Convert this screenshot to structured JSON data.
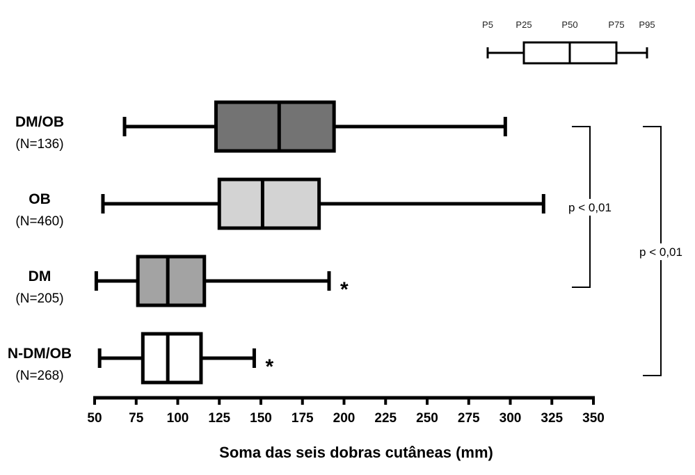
{
  "chart_data": {
    "type": "boxplot",
    "orientation": "horizontal",
    "xlabel": "Soma das seis dobras cutâneas (mm)",
    "xlim": [
      50,
      350
    ],
    "xticks": [
      50,
      75,
      100,
      125,
      150,
      175,
      200,
      225,
      250,
      275,
      300,
      325,
      350
    ],
    "series": [
      {
        "name": "DM/OB",
        "n_label": "(N=136)",
        "p5": 68,
        "p25": 123,
        "p50": 161,
        "p75": 194,
        "p95": 297,
        "fill": "#737373",
        "marker": ""
      },
      {
        "name": "OB",
        "n_label": "(N=460)",
        "p5": 55,
        "p25": 125,
        "p50": 151,
        "p75": 185,
        "p95": 320,
        "fill": "#d3d3d3",
        "marker": ""
      },
      {
        "name": "DM",
        "n_label": "(N=205)",
        "p5": 51,
        "p25": 76,
        "p50": 94,
        "p75": 116,
        "p95": 191,
        "fill": "#a3a3a3",
        "marker": "*"
      },
      {
        "name": "N-DM/OB",
        "n_label": "(N=268)",
        "p5": 53,
        "p25": 79,
        "p50": 94,
        "p75": 114,
        "p95": 146,
        "fill": "#ffffff",
        "marker": "*"
      }
    ],
    "legend": {
      "placement": "top-right",
      "labels": [
        "P5",
        "P25",
        "P50",
        "P75",
        "P95"
      ]
    },
    "annotations": [
      {
        "text": "p < 0,01",
        "from_group": 0,
        "to_group": 2
      },
      {
        "text": "p < 0,01",
        "from_group": 0,
        "to_group": 3
      }
    ]
  }
}
